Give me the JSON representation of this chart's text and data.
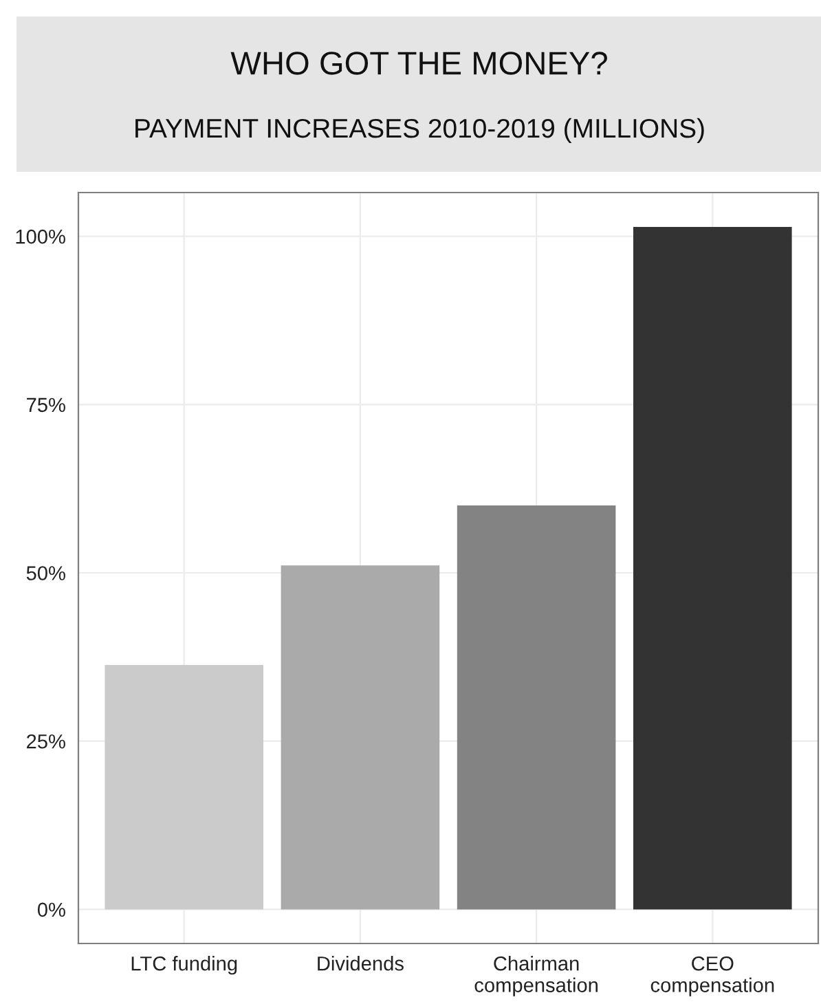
{
  "chart_data": {
    "type": "bar",
    "title": "WHO GOT THE MONEY?",
    "subtitle": "PAYMENT INCREASES 2010-2019 (MILLIONS)",
    "categories": [
      "LTC funding",
      "Dividends",
      "Chairman\ncompensation",
      "CEO\ncompensation"
    ],
    "values": [
      36.3,
      51.1,
      60.0,
      101.4
    ],
    "colors": [
      "#cbcbcb",
      "#aaaaaa",
      "#838383",
      "#333333"
    ],
    "ylim": [
      -5.07,
      106.5
    ],
    "yticks": [
      {
        "value": 0,
        "label": "0%"
      },
      {
        "value": 25,
        "label": "25%"
      },
      {
        "value": 50,
        "label": "50%"
      },
      {
        "value": 75,
        "label": "75%"
      },
      {
        "value": 100,
        "label": "100%"
      }
    ],
    "grid": true,
    "legend": false
  }
}
